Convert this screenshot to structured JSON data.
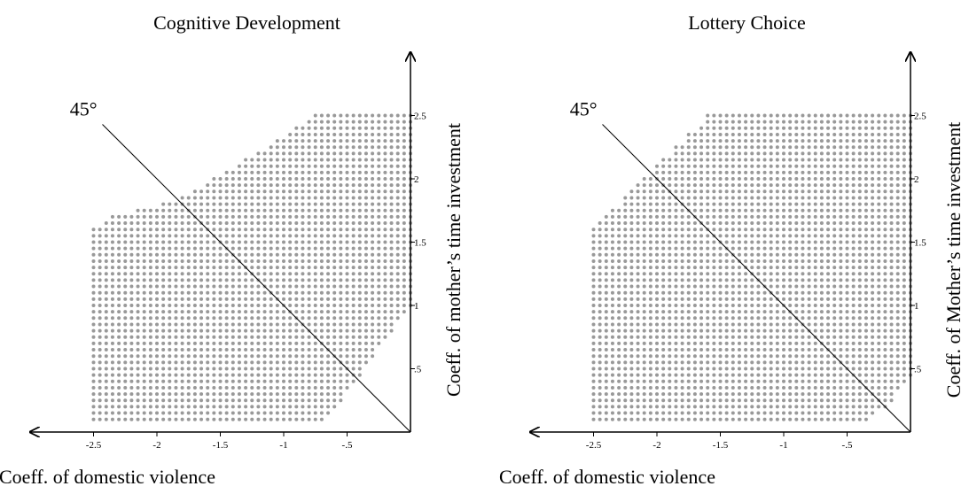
{
  "chart_data": [
    {
      "type": "dot_region",
      "title": "Cognitive Development",
      "x_label": "Coeff. of domestic violence",
      "y_label": "Coeff. of mother’s time investment",
      "xlim": [
        -3,
        0
      ],
      "ylim": [
        0,
        3
      ],
      "xticks": [
        {
          "value": -2.5,
          "label": "-2.5"
        },
        -2,
        -1.5,
        -1,
        {
          "value": -0.5,
          "label": "-.5"
        }
      ],
      "yticks": [
        {
          "value": 0.5,
          "label": ".5"
        },
        1,
        1.5,
        2,
        2.5
      ],
      "color": "#999999",
      "region": [
        [
          -2.5,
          0.1
        ],
        [
          -2.5,
          1.6
        ],
        [
          -2.35,
          1.7
        ],
        [
          -1.8,
          1.85
        ],
        [
          -1.3,
          2.15
        ],
        [
          -0.75,
          2.5
        ],
        [
          0,
          2.5
        ],
        [
          0,
          1.0
        ],
        [
          -0.65,
          0.1
        ]
      ],
      "reference_line": {
        "label": "45°",
        "points": [
          [
            0,
            0
          ],
          [
            -2.43,
            2.43
          ]
        ]
      }
    },
    {
      "type": "dot_region",
      "title": "Lottery Choice",
      "x_label": "Coeff. of domestic violence",
      "y_label": "Coeff. of Mother’s time investment",
      "xlim": [
        -3,
        0
      ],
      "ylim": [
        0,
        3
      ],
      "xticks": [
        {
          "value": -2.5,
          "label": "-2.5"
        },
        -2,
        -1.5,
        -1,
        {
          "value": -0.5,
          "label": "-.5"
        }
      ],
      "yticks": [
        {
          "value": 0.5,
          "label": ".5"
        },
        1,
        1.5,
        2,
        2.5
      ],
      "color": "#999999",
      "region": [
        [
          -2.5,
          0.1
        ],
        [
          -2.5,
          1.6
        ],
        [
          -1.6,
          2.5
        ],
        [
          0,
          2.5
        ],
        [
          0,
          0.4
        ],
        [
          -0.3,
          0.1
        ]
      ],
      "reference_line": {
        "label": "45°",
        "points": [
          [
            0,
            0
          ],
          [
            -2.43,
            2.43
          ]
        ]
      }
    }
  ]
}
